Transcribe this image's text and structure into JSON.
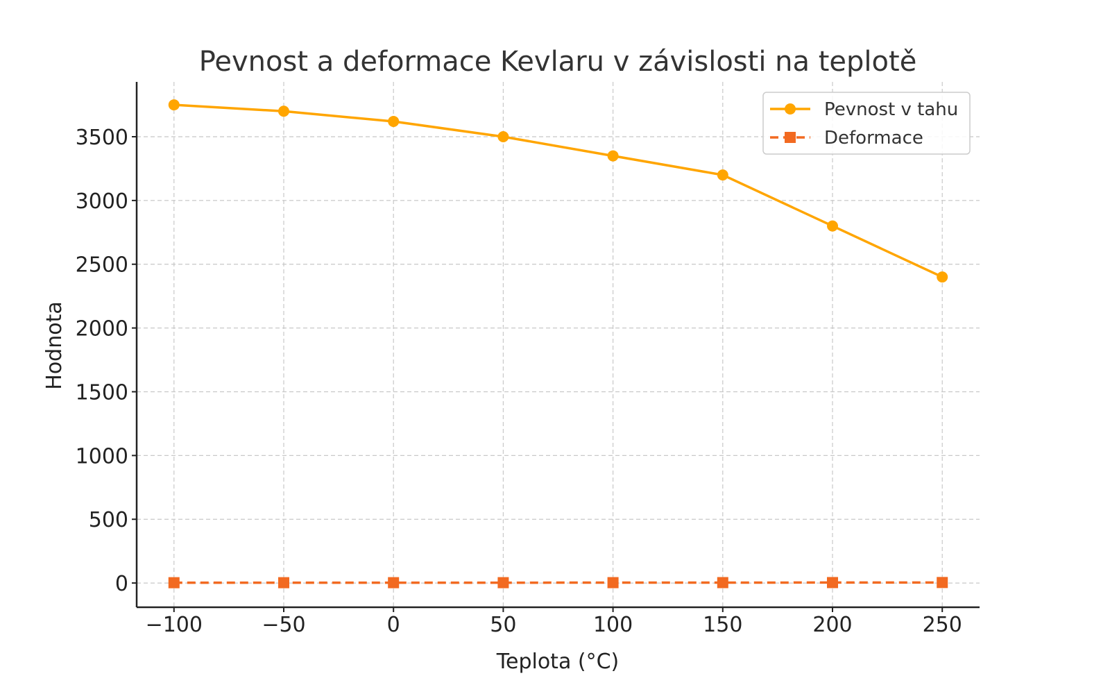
{
  "chart_data": {
    "type": "line",
    "title": "Pevnost a deformace Kevlaru v závislosti na teplotě",
    "xlabel": "Teplota (°C)",
    "ylabel": "Hodnota",
    "x": [
      -100,
      -50,
      0,
      50,
      100,
      150,
      200,
      250
    ],
    "xlim": [
      -117,
      267
    ],
    "ylim": [
      -190,
      3930
    ],
    "xticks": [
      -100,
      -50,
      0,
      50,
      100,
      150,
      200,
      250
    ],
    "xtick_labels": [
      "−100",
      "−50",
      "0",
      "50",
      "100",
      "150",
      "200",
      "250"
    ],
    "yticks": [
      0,
      500,
      1000,
      1500,
      2000,
      2500,
      3000,
      3500
    ],
    "grid": true,
    "legend": "top-right",
    "series": [
      {
        "name": "Pevnost v tahu",
        "values": [
          3750,
          3700,
          3620,
          3500,
          3350,
          3200,
          2800,
          2400
        ],
        "color": "#FFA500",
        "marker": "circle",
        "linestyle": "solid"
      },
      {
        "name": "Deformace",
        "values": [
          2.5,
          2.6,
          2.7,
          2.8,
          3.0,
          3.2,
          3.5,
          4.0
        ],
        "color": "#F26A21",
        "marker": "square",
        "linestyle": "dashed"
      }
    ]
  }
}
